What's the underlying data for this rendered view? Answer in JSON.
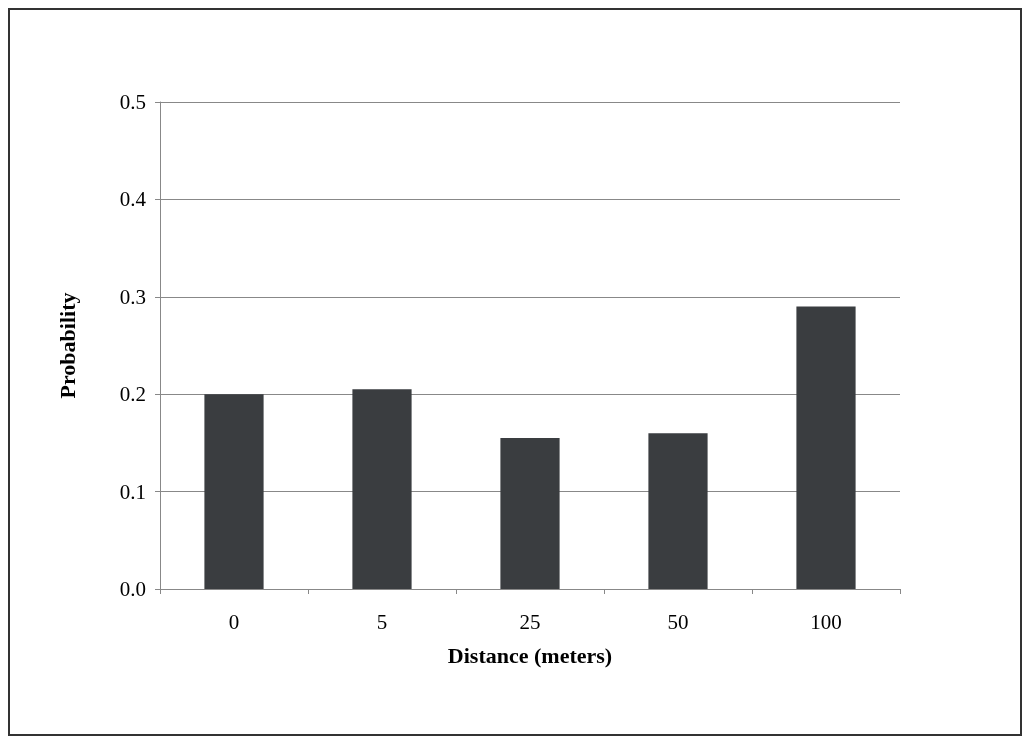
{
  "chart_data": {
    "type": "bar",
    "xlabel": "Distance (meters)",
    "ylabel": "Probability",
    "categories": [
      "0",
      "5",
      "25",
      "50",
      "100"
    ],
    "values": [
      0.2,
      0.205,
      0.155,
      0.16,
      0.29
    ],
    "color": "#3a3d40",
    "ylim": [
      0,
      0.5
    ],
    "yticks": [
      {
        "value": 0,
        "label": "0.0"
      },
      {
        "value": 0.1,
        "label": "0.1"
      },
      {
        "value": 0.2,
        "label": "0.2"
      },
      {
        "value": 0.3,
        "label": "0.3"
      },
      {
        "value": 0.4,
        "label": "0.4"
      },
      {
        "value": 0.5,
        "label": "0.5"
      }
    ],
    "grid": "y"
  }
}
